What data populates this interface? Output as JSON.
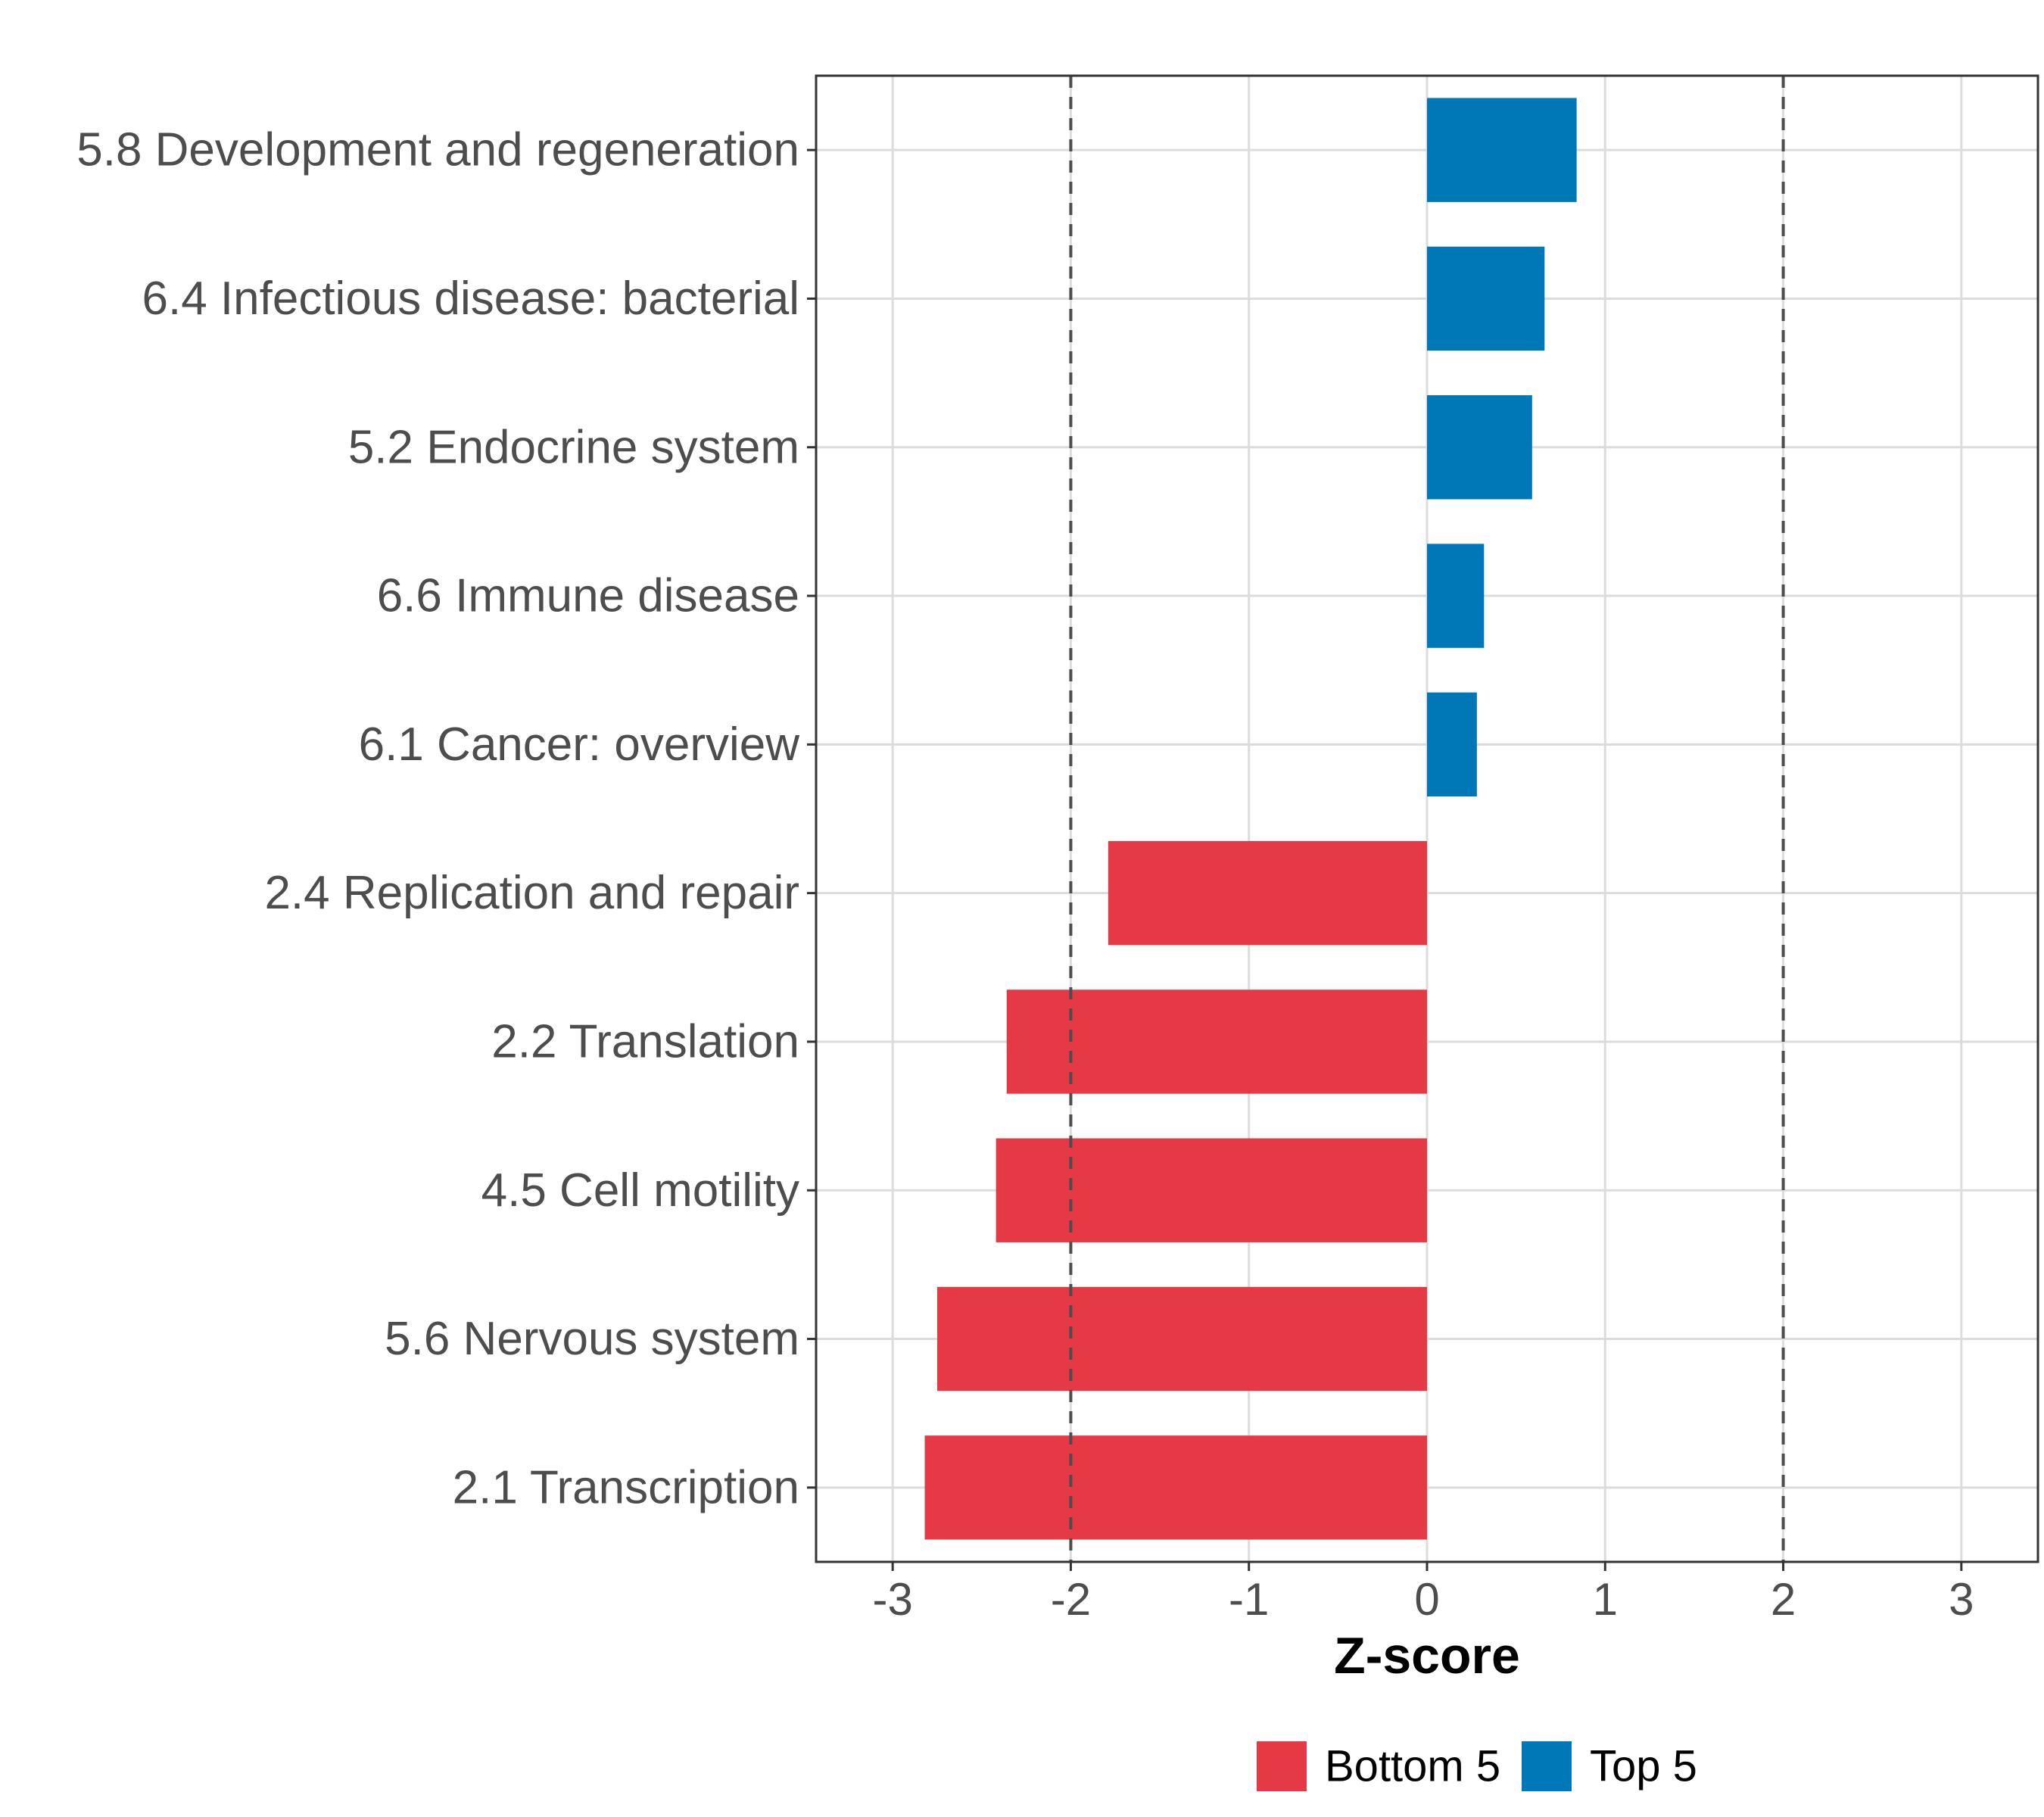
{
  "chart_data": {
    "type": "bar",
    "orientation": "horizontal",
    "categories": [
      "5.8 Development and regeneration",
      "6.4 Infectious disease: bacterial",
      "5.2 Endocrine system",
      "6.6 Immune disease",
      "6.1 Cancer: overview",
      "2.4 Replication and repair",
      "2.2 Translation",
      "4.5 Cell motility",
      "5.6 Nervous system",
      "2.1 Transcription"
    ],
    "values": [
      0.84,
      0.66,
      0.59,
      0.32,
      0.28,
      -1.79,
      -2.36,
      -2.42,
      -2.75,
      -2.82
    ],
    "groups": [
      "Top 5",
      "Top 5",
      "Top 5",
      "Top 5",
      "Top 5",
      "Bottom 5",
      "Bottom 5",
      "Bottom 5",
      "Bottom 5",
      "Bottom 5"
    ],
    "xlabel": "Z-score",
    "ylabel": "",
    "xlim": [
      -3.43,
      3.43
    ],
    "xticks": [
      -3,
      -2,
      -1,
      0,
      1,
      2,
      3
    ],
    "xtick_labels": [
      "-3",
      "-2",
      "-1",
      "0",
      "1",
      "2",
      "3"
    ],
    "reference_lines": [
      -2,
      2
    ],
    "grid": true,
    "legend": {
      "position": "bottom",
      "entries": [
        {
          "label": "Bottom 5",
          "color": "#e63946"
        },
        {
          "label": "Top 5",
          "color": "#0077b6"
        }
      ]
    },
    "colors": {
      "Top 5": "#0077b6",
      "Bottom 5": "#e63946"
    }
  }
}
